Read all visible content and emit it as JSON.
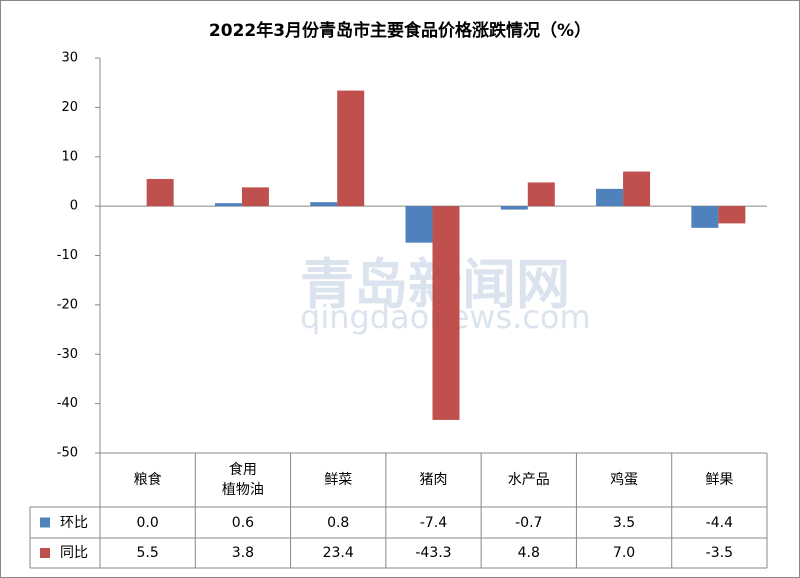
{
  "chart_data": {
    "type": "bar",
    "title": "2022年3月份青岛市主要食品价格涨跌情况（%）",
    "categories": [
      "粮食",
      "食用\n植物油",
      "鲜菜",
      "猪肉",
      "水产品",
      "鸡蛋",
      "鲜果"
    ],
    "series": [
      {
        "name": "环比",
        "color": "#4f81bd",
        "values": [
          0.0,
          0.6,
          0.8,
          -7.4,
          -0.7,
          3.5,
          -4.4
        ],
        "value_labels": [
          "0.0",
          "0.6",
          "0.8",
          "-7.4",
          "-0.7",
          "3.5",
          "-4.4"
        ]
      },
      {
        "name": "同比",
        "color": "#c0504d",
        "values": [
          5.5,
          3.8,
          23.4,
          -43.3,
          4.8,
          7.0,
          -3.5
        ],
        "value_labels": [
          "5.5",
          "3.8",
          "23.4",
          "-43.3",
          "4.8",
          "7.0",
          "-3.5"
        ]
      }
    ],
    "ylim": [
      -50,
      30
    ],
    "yticks": [
      -50,
      -40,
      -30,
      -20,
      -10,
      0,
      10,
      20,
      30
    ],
    "watermark": [
      "青岛新闻网",
      "qingdaonews.com"
    ]
  }
}
